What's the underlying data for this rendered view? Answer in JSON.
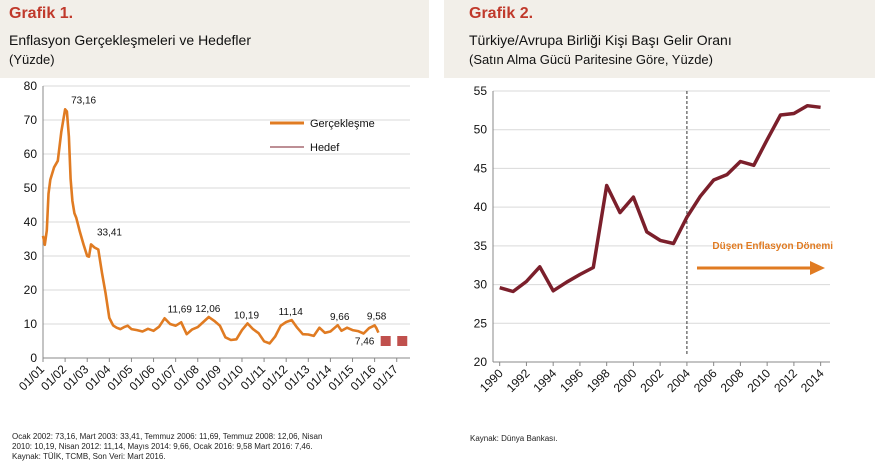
{
  "left": {
    "label": "Grafik 1.",
    "title": "Enflasyon Gerçekleşmeleri ve Hedefler",
    "subtitle": "(Yüzde)",
    "footnote": [
      "Ocak 2002: 73,16, Mart 2003: 33,41, Temmuz 2006: 11,69, Temmuz 2008: 12,06, Nisan",
      "2010: 10,19, Nisan 2012: 11,14, Mayıs 2014: 9,66, Ocak 2016: 9,58 Mart 2016: 7,46.",
      "Kaynak: TÜİK, TCMB, Son Veri: Mart 2016."
    ]
  },
  "right": {
    "label": "Grafik 2.",
    "title": "Türkiye/Avrupa Birliği Kişi Başı Gelir Oranı",
    "subtitle": "(Satın Alma Gücü Paritesine Göre, Yüzde)",
    "footnote": "Kaynak: Dünya Bankası."
  },
  "colors": {
    "orange": "#e07b22",
    "maroon": "#7b1f2b",
    "target": "#c0504d",
    "grid": "#d9d9d9"
  },
  "chart_data": [
    {
      "type": "line",
      "ylim": [
        0,
        80
      ],
      "yticks": [
        0,
        10,
        20,
        30,
        40,
        50,
        60,
        70,
        80
      ],
      "categories": [
        "01/01",
        "01/02",
        "01/03",
        "01/04",
        "01/05",
        "01/06",
        "01/07",
        "01/08",
        "01/09",
        "01/10",
        "01/11",
        "01/12",
        "01/13",
        "01/14",
        "01/15",
        "01/16",
        "01/17"
      ],
      "grid": true,
      "legend_position": "top-right",
      "series": [
        {
          "name": "Gerçekleşme",
          "color": "#e07b22",
          "x": [
            2001.0,
            2001.08,
            2001.17,
            2001.25,
            2001.33,
            2001.5,
            2001.67,
            2001.83,
            2002.0,
            2002.08,
            2002.17,
            2002.25,
            2002.33,
            2002.42,
            2002.5,
            2002.67,
            2002.83,
            2003.0,
            2003.08,
            2003.17,
            2003.33,
            2003.5,
            2003.67,
            2003.83,
            2004.0,
            2004.17,
            2004.33,
            2004.5,
            2004.67,
            2004.83,
            2005.0,
            2005.25,
            2005.5,
            2005.75,
            2006.0,
            2006.25,
            2006.5,
            2006.75,
            2007.0,
            2007.25,
            2007.5,
            2007.75,
            2008.0,
            2008.25,
            2008.5,
            2008.75,
            2009.0,
            2009.25,
            2009.5,
            2009.75,
            2010.0,
            2010.25,
            2010.5,
            2010.75,
            2011.0,
            2011.25,
            2011.5,
            2011.75,
            2012.0,
            2012.25,
            2012.5,
            2012.75,
            2013.0,
            2013.25,
            2013.5,
            2013.75,
            2014.0,
            2014.33,
            2014.5,
            2014.75,
            2015.0,
            2015.25,
            2015.5,
            2015.75,
            2016.0,
            2016.08,
            2016.17
          ],
          "values": [
            35.9,
            33.3,
            37.5,
            48.3,
            52.4,
            56.1,
            58.0,
            66.5,
            73.16,
            72.5,
            65.1,
            52.7,
            46.2,
            42.6,
            41.3,
            37.1,
            33.4,
            30.0,
            29.8,
            33.41,
            32.5,
            31.9,
            25.0,
            19.0,
            11.8,
            9.6,
            8.9,
            8.5,
            9.1,
            9.5,
            8.5,
            8.2,
            7.8,
            8.6,
            8.0,
            9.2,
            11.69,
            10.0,
            9.5,
            10.5,
            7.0,
            8.4,
            9.1,
            10.6,
            12.06,
            10.9,
            9.5,
            6.1,
            5.3,
            5.5,
            8.2,
            10.19,
            8.5,
            7.3,
            4.9,
            4.3,
            6.3,
            9.5,
            10.6,
            11.14,
            8.9,
            7.0,
            6.9,
            6.5,
            8.9,
            7.4,
            7.8,
            9.66,
            8.0,
            8.9,
            8.2,
            7.9,
            7.2,
            8.8,
            9.58,
            8.8,
            7.46
          ]
        },
        {
          "name": "Hedef",
          "color": "#c0504d",
          "x": [
            2016.5,
            2017.25
          ],
          "values": [
            5.0,
            5.0
          ]
        }
      ],
      "annotations": [
        "73,16",
        "33,41",
        "11,69",
        "12,06",
        "10,19",
        "11,14",
        "9,66",
        "9,58",
        "7,46"
      ]
    },
    {
      "type": "line",
      "ylim": [
        20,
        55
      ],
      "yticks": [
        20,
        25,
        30,
        35,
        40,
        45,
        50,
        55
      ],
      "xticks": [
        1990,
        1992,
        1994,
        1996,
        1998,
        2000,
        2002,
        2004,
        2006,
        2008,
        2010,
        2012,
        2014
      ],
      "grid": true,
      "series": [
        {
          "color": "#7b1f2b",
          "x": [
            1990,
            1991,
            1992,
            1993,
            1994,
            1995,
            1996,
            1997,
            1998,
            1999,
            2000,
            2001,
            2002,
            2003,
            2004,
            2005,
            2006,
            2007,
            2008,
            2009,
            2010,
            2011,
            2012,
            2013,
            2014
          ],
          "values": [
            29.6,
            29.1,
            30.4,
            32.3,
            29.2,
            30.3,
            31.3,
            32.2,
            42.8,
            39.3,
            41.3,
            36.8,
            35.7,
            35.3,
            38.7,
            41.4,
            43.5,
            44.2,
            45.9,
            45.4,
            48.7,
            51.9,
            52.1,
            53.1,
            52.9
          ]
        }
      ],
      "annotation": {
        "text": "Düşen Enflasyon Dönemi",
        "divider_year": 2004.0
      }
    }
  ]
}
